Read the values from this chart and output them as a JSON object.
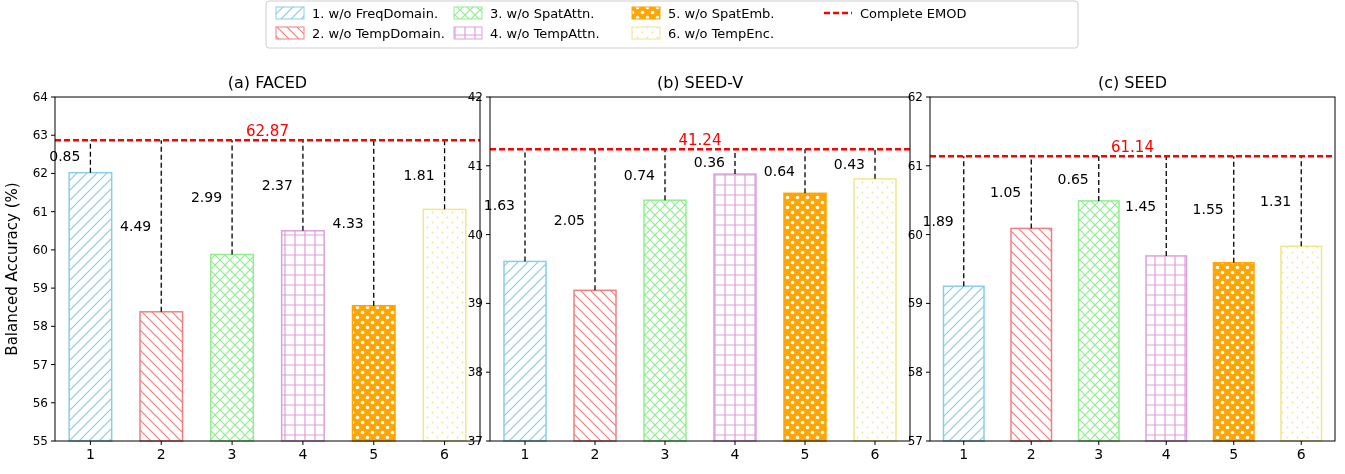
{
  "chart_data": [
    {
      "type": "bar",
      "title": "(a) FACED",
      "ylabel": "Balanced Accuracy (%)",
      "categories": [
        "1",
        "2",
        "3",
        "4",
        "5",
        "6"
      ],
      "series": [
        {
          "name": "1. w/o FreqDomain.",
          "color": "#87ceeb",
          "values": [
            62.02,
            null,
            null,
            null,
            null,
            null
          ]
        },
        {
          "name": "2. w/o TempDomain.",
          "color": "#f08080",
          "values": [
            null,
            58.38,
            null,
            null,
            null,
            null
          ]
        },
        {
          "name": "3. w/o SpatAttn.",
          "color": "#90ee90",
          "values": [
            null,
            null,
            59.88,
            null,
            null,
            null
          ]
        },
        {
          "name": "4. w/o TempAttn.",
          "color": "#dda0dd",
          "values": [
            null,
            null,
            null,
            60.5,
            null,
            null
          ]
        },
        {
          "name": "5. w/o SpatEmb.",
          "color": "#ffa500",
          "values": [
            null,
            null,
            null,
            null,
            58.54,
            null
          ]
        },
        {
          "name": "6. w/o TempEnc.",
          "color": "#f0e68c",
          "values": [
            null,
            null,
            null,
            null,
            null,
            61.06
          ]
        }
      ],
      "ylim": [
        55,
        64
      ],
      "yticks": [
        55,
        56,
        57,
        58,
        59,
        60,
        61,
        62,
        63,
        64
      ],
      "grid": false,
      "legend": "top",
      "ref_lines": [
        {
          "axis": "y",
          "value": 62.87,
          "label": "Complete EMOD",
          "color": "#ff0000",
          "line_style": "dashed"
        }
      ],
      "annotations": [
        "0.85",
        "4.49",
        "2.99",
        "2.37",
        "4.33",
        "1.81",
        {
          "text": "62.87",
          "y": 62.87
        }
      ]
    },
    {
      "type": "bar",
      "title": "(b) SEED-V",
      "categories": [
        "1",
        "2",
        "3",
        "4",
        "5",
        "6"
      ],
      "series": [
        {
          "color": "#87ceeb",
          "values": [
            39.61,
            null,
            null,
            null,
            null,
            null
          ]
        },
        {
          "color": "#f08080",
          "values": [
            null,
            39.19,
            null,
            null,
            null,
            null
          ]
        },
        {
          "color": "#90ee90",
          "values": [
            null,
            null,
            40.5,
            null,
            null,
            null
          ]
        },
        {
          "color": "#dda0dd",
          "values": [
            null,
            null,
            null,
            40.88,
            null,
            null
          ]
        },
        {
          "color": "#ffa500",
          "values": [
            null,
            null,
            null,
            null,
            40.6,
            null
          ]
        },
        {
          "color": "#f0e68c",
          "values": [
            null,
            null,
            null,
            null,
            null,
            40.81
          ]
        }
      ],
      "ylim": [
        37,
        42
      ],
      "yticks": [
        37,
        38,
        39,
        40,
        41,
        42
      ],
      "grid": false,
      "ref_lines": [
        {
          "axis": "y",
          "value": 41.24,
          "color": "#ff0000",
          "line_style": "dashed"
        }
      ],
      "annotations": [
        "1.63",
        "2.05",
        "0.74",
        "0.36",
        "0.64",
        "0.43",
        {
          "text": "41.24",
          "y": 41.24
        }
      ]
    },
    {
      "type": "bar",
      "title": "(c) SEED",
      "categories": [
        "1",
        "2",
        "3",
        "4",
        "5",
        "6"
      ],
      "series": [
        {
          "color": "#87ceeb",
          "values": [
            59.25,
            null,
            null,
            null,
            null,
            null
          ]
        },
        {
          "color": "#f08080",
          "values": [
            null,
            60.09,
            null,
            null,
            null,
            null
          ]
        },
        {
          "color": "#90ee90",
          "values": [
            null,
            null,
            60.49,
            null,
            null,
            null
          ]
        },
        {
          "color": "#dda0dd",
          "values": [
            null,
            null,
            null,
            59.69,
            null,
            null
          ]
        },
        {
          "color": "#ffa500",
          "values": [
            null,
            null,
            null,
            null,
            59.59,
            null
          ]
        },
        {
          "color": "#f0e68c",
          "values": [
            null,
            null,
            null,
            null,
            null,
            59.83
          ]
        }
      ],
      "ylim": [
        57,
        62
      ],
      "yticks": [
        57,
        58,
        59,
        60,
        61,
        62
      ],
      "grid": false,
      "ref_lines": [
        {
          "axis": "y",
          "value": 61.14,
          "color": "#ff0000",
          "line_style": "dashed"
        }
      ],
      "annotations": [
        "1.89",
        "1.05",
        "0.65",
        "1.45",
        "1.55",
        "1.31",
        {
          "text": "61.14",
          "y": 61.14
        }
      ]
    }
  ]
}
